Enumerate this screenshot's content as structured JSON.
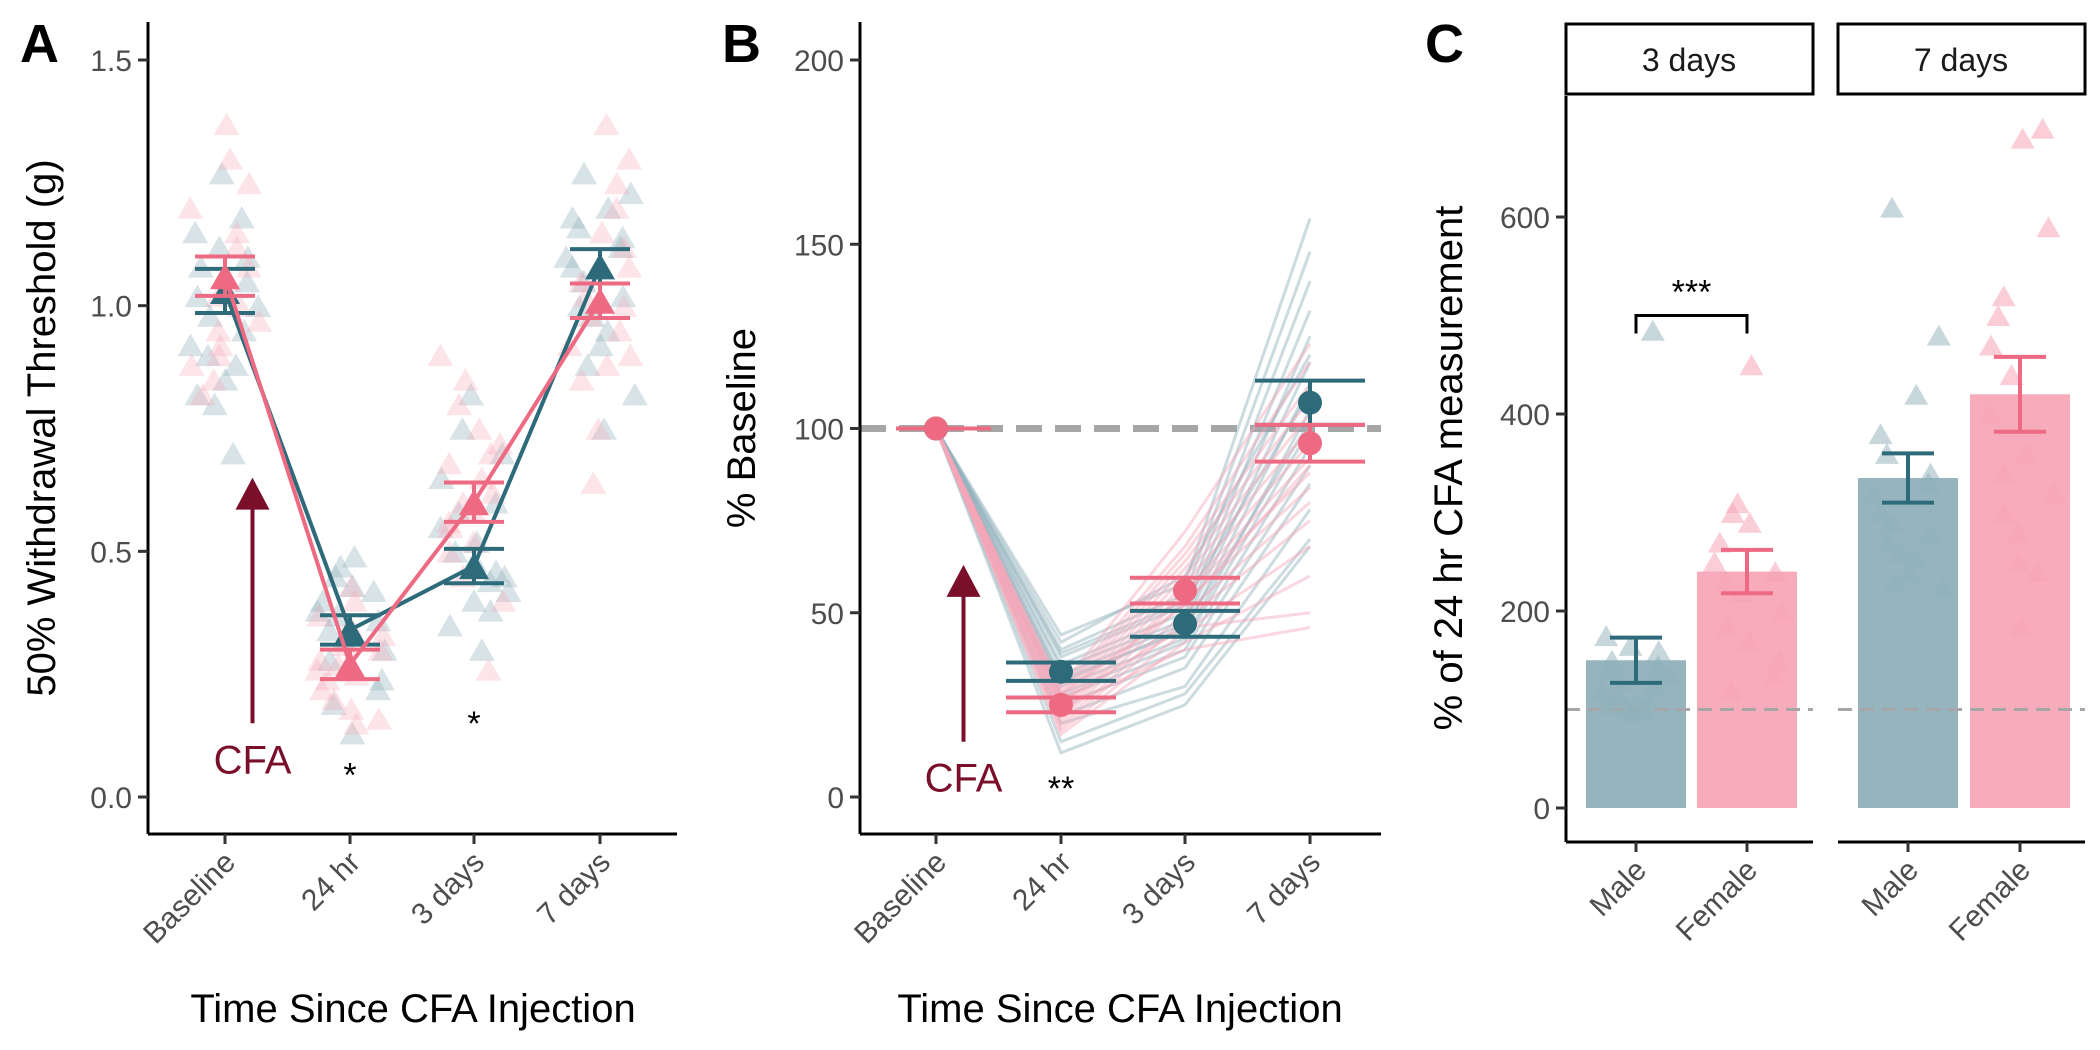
{
  "colors": {
    "male": "#2e6b7a",
    "female": "#ee6a83",
    "male_light": "#8fb0ba",
    "female_light": "#f7a6b7",
    "cfa_arrow": "#7a0f2a",
    "reference_line": "#a6a6a6"
  },
  "chart_data": [
    {
      "type": "scatter",
      "panel": "A",
      "xlabel": "Time Since CFA Injection",
      "ylabel": "50% Withdrawal Threshold (g)",
      "categories": [
        "Baseline",
        "24 hr",
        "3 days",
        "7 days"
      ],
      "ylim": [
        -0.08,
        1.57
      ],
      "yticks": [
        0.0,
        0.5,
        1.0,
        1.5
      ],
      "ytick_labels": [
        "0.0",
        "0.5",
        "1.0",
        "1.5"
      ],
      "series": [
        {
          "group": "male",
          "mean": [
            1.03,
            0.34,
            0.47,
            1.08
          ],
          "se": [
            0.045,
            0.03,
            0.035,
            0.035
          ]
        },
        {
          "group": "female",
          "mean": [
            1.06,
            0.27,
            0.6,
            1.01
          ],
          "se": [
            0.04,
            0.03,
            0.04,
            0.035
          ]
        }
      ],
      "points": {
        "male": [
          [
            1.18,
            1.15,
            1.12,
            1.1,
            1.08,
            1.05,
            1.02,
            1.0,
            0.98,
            0.95,
            0.92,
            0.9,
            0.88,
            0.85,
            0.82,
            0.8,
            0.7,
            1.27
          ],
          [
            0.49,
            0.47,
            0.45,
            0.43,
            0.4,
            0.38,
            0.36,
            0.34,
            0.32,
            0.3,
            0.28,
            0.26,
            0.24,
            0.22,
            0.19,
            0.13,
            0.42,
            0.37
          ],
          [
            0.82,
            0.75,
            0.7,
            0.65,
            0.6,
            0.55,
            0.52,
            0.5,
            0.48,
            0.46,
            0.44,
            0.42,
            0.4,
            0.38,
            0.35,
            0.3,
            0.45,
            0.58
          ],
          [
            1.27,
            1.23,
            1.2,
            1.18,
            1.16,
            1.14,
            1.12,
            1.1,
            1.08,
            1.05,
            1.02,
            1.0,
            0.98,
            0.95,
            0.92,
            0.88,
            0.82,
            0.75
          ]
        ],
        "female": [
          [
            1.37,
            1.3,
            1.25,
            1.2,
            1.15,
            1.12,
            1.08,
            1.05,
            1.02,
            1.0,
            0.97,
            0.95,
            0.92,
            0.9,
            0.88,
            0.85,
            0.82
          ],
          [
            0.43,
            0.4,
            0.37,
            0.35,
            0.33,
            0.31,
            0.3,
            0.28,
            0.27,
            0.26,
            0.25,
            0.24,
            0.22,
            0.2,
            0.18,
            0.16,
            0.15
          ],
          [
            0.9,
            0.85,
            0.8,
            0.75,
            0.72,
            0.7,
            0.68,
            0.65,
            0.62,
            0.6,
            0.58,
            0.56,
            0.55,
            0.52,
            0.5,
            0.45,
            0.4,
            0.26
          ],
          [
            1.37,
            1.3,
            1.25,
            1.2,
            1.15,
            1.12,
            1.08,
            1.05,
            1.02,
            1.0,
            0.98,
            0.95,
            0.92,
            0.9,
            0.88,
            0.85,
            0.75,
            0.64
          ]
        ]
      },
      "annotations": [
        {
          "text": "*",
          "category": "24 hr",
          "y": 0.05
        },
        {
          "text": "*",
          "category": "3 days",
          "y": 0.155
        },
        {
          "text": "CFA",
          "kind": "arrow",
          "x": 0.22,
          "y_from": 0.15,
          "y_to": 0.65
        }
      ]
    },
    {
      "type": "line",
      "panel": "B",
      "xlabel": "Time Since CFA Injection",
      "ylabel": "% Baseline",
      "categories": [
        "Baseline",
        "24 hr",
        "3 days",
        "7 days"
      ],
      "ylim": [
        -10,
        210
      ],
      "yticks": [
        0,
        50,
        100,
        150,
        200
      ],
      "ytick_labels": [
        "0",
        "50",
        "100",
        "150",
        "200"
      ],
      "reference_y": 100,
      "series": [
        {
          "group": "male",
          "mean": [
            100,
            34,
            47,
            107
          ],
          "se": [
            0,
            2.5,
            3.5,
            6
          ]
        },
        {
          "group": "female",
          "mean": [
            100,
            25,
            56,
            96
          ],
          "se": [
            0,
            2,
            3.5,
            5
          ]
        }
      ],
      "individual": {
        "male": [
          [
            100,
            44,
            58,
            157
          ],
          [
            100,
            40,
            55,
            148
          ],
          [
            100,
            38,
            52,
            140
          ],
          [
            100,
            36,
            50,
            132
          ],
          [
            100,
            35,
            48,
            125
          ],
          [
            100,
            33,
            47,
            118
          ],
          [
            100,
            32,
            45,
            112
          ],
          [
            100,
            30,
            43,
            105
          ],
          [
            100,
            28,
            42,
            100
          ],
          [
            100,
            27,
            40,
            95
          ],
          [
            100,
            25,
            38,
            90
          ],
          [
            100,
            22,
            35,
            85
          ],
          [
            100,
            20,
            30,
            78
          ],
          [
            100,
            15,
            28,
            70
          ],
          [
            100,
            12,
            25,
            68
          ],
          [
            100,
            42,
            60,
            120
          ],
          [
            100,
            39,
            53,
            110
          ],
          [
            100,
            31,
            46,
            102
          ]
        ],
        "female": [
          [
            100,
            30,
            72,
            123
          ],
          [
            100,
            29,
            68,
            118
          ],
          [
            100,
            28,
            66,
            112
          ],
          [
            100,
            27,
            64,
            108
          ],
          [
            100,
            26,
            62,
            104
          ],
          [
            100,
            25,
            60,
            100
          ],
          [
            100,
            24,
            58,
            96
          ],
          [
            100,
            23,
            56,
            92
          ],
          [
            100,
            22,
            55,
            88
          ],
          [
            100,
            21,
            53,
            84
          ],
          [
            100,
            20,
            50,
            80
          ],
          [
            100,
            19,
            48,
            75
          ],
          [
            100,
            18,
            45,
            68
          ],
          [
            100,
            17,
            42,
            60
          ],
          [
            100,
            26,
            46,
            50
          ],
          [
            100,
            24,
            40,
            46
          ],
          [
            100,
            28,
            52,
            90
          ]
        ]
      },
      "annotations": [
        {
          "text": "**",
          "category": "24 hr",
          "y": 3
        },
        {
          "text": "CFA",
          "kind": "arrow",
          "x": 0.22,
          "y_from": 15,
          "y_to": 63
        }
      ]
    },
    {
      "type": "bar",
      "panel": "C",
      "ylabel": "% of 24 hr CFA measurement",
      "facets": [
        "3 days",
        "7 days"
      ],
      "categories": [
        "Male",
        "Female"
      ],
      "ylim": [
        -30,
        720
      ],
      "yticks": [
        0,
        200,
        400,
        600
      ],
      "ytick_labels": [
        "0",
        "200",
        "400",
        "600"
      ],
      "reference_y": 100,
      "bars": [
        {
          "facet": "3 days",
          "group": "male",
          "value": 150,
          "se": 23
        },
        {
          "facet": "3 days",
          "group": "female",
          "value": 240,
          "se": 22
        },
        {
          "facet": "7 days",
          "group": "male",
          "value": 335,
          "se": 25
        },
        {
          "facet": "7 days",
          "group": "female",
          "value": 420,
          "se": 38
        }
      ],
      "points": {
        "3 days": {
          "male": [
            485,
            175,
            165,
            160,
            150,
            145,
            140,
            135,
            130,
            125,
            120,
            115,
            110,
            108,
            105,
            102,
            100,
            98
          ],
          "female": [
            450,
            310,
            300,
            290,
            270,
            250,
            240,
            230,
            220,
            200,
            185,
            170,
            150,
            135,
            120
          ]
        },
        "7 days": {
          "male": [
            610,
            480,
            420,
            380,
            360,
            340,
            330,
            320,
            300,
            290,
            280,
            270,
            260,
            255,
            240,
            230,
            225
          ],
          "female": [
            690,
            680,
            590,
            520,
            500,
            470,
            440,
            400,
            360,
            340,
            320,
            300,
            280,
            250,
            240,
            185
          ]
        }
      },
      "annotations": [
        {
          "text": "***",
          "facet": "3 days",
          "kind": "bracket",
          "y": 500
        }
      ]
    }
  ]
}
